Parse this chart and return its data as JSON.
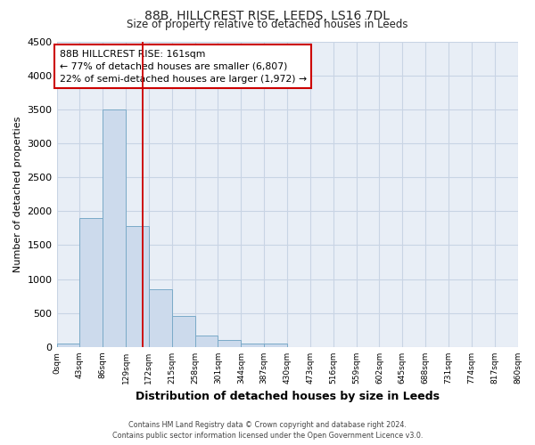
{
  "title": "88B, HILLCREST RISE, LEEDS, LS16 7DL",
  "subtitle": "Size of property relative to detached houses in Leeds",
  "xlabel": "Distribution of detached houses by size in Leeds",
  "ylabel": "Number of detached properties",
  "bin_edges": [
    0,
    43,
    86,
    129,
    172,
    215,
    258,
    301,
    344,
    387,
    430,
    473,
    516,
    559,
    602,
    645,
    688,
    731,
    774,
    817,
    860
  ],
  "bar_values": [
    50,
    1900,
    3500,
    1775,
    850,
    455,
    175,
    100,
    50,
    50,
    0,
    0,
    0,
    0,
    0,
    0,
    0,
    0,
    0,
    0
  ],
  "bar_color": "#ccdaec",
  "bar_edge_color": "#7aaac8",
  "vline_x": 161,
  "vline_color": "#cc0000",
  "ylim": [
    0,
    4500
  ],
  "yticks": [
    0,
    500,
    1000,
    1500,
    2000,
    2500,
    3000,
    3500,
    4000,
    4500
  ],
  "xtick_labels": [
    "0sqm",
    "43sqm",
    "86sqm",
    "129sqm",
    "172sqm",
    "215sqm",
    "258sqm",
    "301sqm",
    "344sqm",
    "387sqm",
    "430sqm",
    "473sqm",
    "516sqm",
    "559sqm",
    "602sqm",
    "645sqm",
    "688sqm",
    "731sqm",
    "774sqm",
    "817sqm",
    "860sqm"
  ],
  "annotation_title": "88B HILLCREST RISE: 161sqm",
  "annotation_line1": "← 77% of detached houses are smaller (6,807)",
  "annotation_line2": "22% of semi-detached houses are larger (1,972) →",
  "annotation_box_color": "#ffffff",
  "annotation_box_edge_color": "#cc0000",
  "footer_line1": "Contains HM Land Registry data © Crown copyright and database right 2024.",
  "footer_line2": "Contains public sector information licensed under the Open Government Licence v3.0.",
  "grid_color": "#c8d4e4",
  "background_color": "#e8eef6",
  "fig_background_color": "#ffffff"
}
